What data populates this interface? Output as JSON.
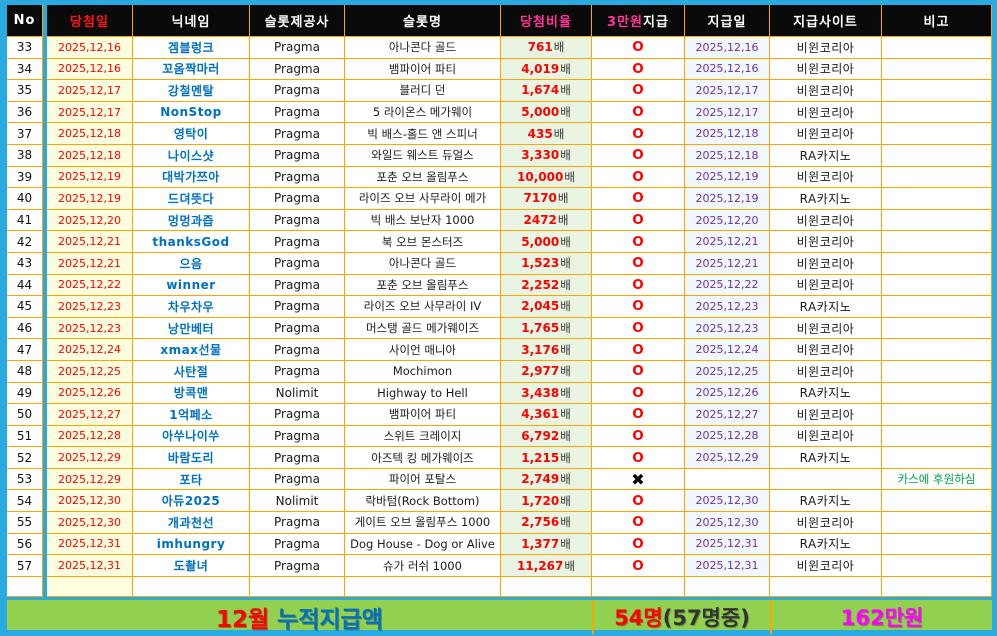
{
  "header": {
    "no": "No",
    "win_date": "당첨일",
    "nickname": "닉네임",
    "provider": "슬롯제공사",
    "slot": "슬롯명",
    "ratio": "당첨비율",
    "paid_accent": "3만원",
    "paid_rest": "지급",
    "pay_date": "지급일",
    "site": "지급사이트",
    "note": "비고"
  },
  "rows": [
    {
      "no": "33",
      "win_date": "2025,12,16",
      "nickname": "겜블렁크",
      "provider": "Pragma",
      "slot": "아나콘다 골드",
      "ratio_value": "761",
      "ratio_unit": "배",
      "paid_mark": "O",
      "pay_date": "2025,12,16",
      "site": "비윈코리아",
      "note": ""
    },
    {
      "no": "34",
      "win_date": "2025,12,16",
      "nickname": "꼬옴짝마러",
      "provider": "Pragma",
      "slot": "뱀파이어 파티",
      "ratio_value": "4,019",
      "ratio_unit": "배",
      "paid_mark": "O",
      "pay_date": "2025,12,16",
      "site": "비윈코리아",
      "note": ""
    },
    {
      "no": "35",
      "win_date": "2025,12,17",
      "nickname": "강철멘탈",
      "provider": "Pragma",
      "slot": "블러디 던",
      "ratio_value": "1,674",
      "ratio_unit": "배",
      "paid_mark": "O",
      "pay_date": "2025,12,17",
      "site": "비윈코리아",
      "note": ""
    },
    {
      "no": "36",
      "win_date": "2025,12,17",
      "nickname": "NonStop",
      "provider": "Pragma",
      "slot": "5 라이온스 메가웨이",
      "ratio_value": "5,000",
      "ratio_unit": "배",
      "paid_mark": "O",
      "pay_date": "2025,12,17",
      "site": "비윈코리아",
      "note": ""
    },
    {
      "no": "37",
      "win_date": "2025,12,18",
      "nickname": "영탁이",
      "provider": "Pragma",
      "slot": "빅 배스-홀드 앤 스피너",
      "ratio_value": "435",
      "ratio_unit": "배",
      "paid_mark": "O",
      "pay_date": "2025,12,18",
      "site": "비윈코리아",
      "note": ""
    },
    {
      "no": "38",
      "win_date": "2025,12,18",
      "nickname": "나이스샷",
      "provider": "Pragma",
      "slot": "와일드 웨스트 듀얼스",
      "ratio_value": "3,330",
      "ratio_unit": "배",
      "paid_mark": "O",
      "pay_date": "2025,12,18",
      "site": "RA카지노",
      "note": ""
    },
    {
      "no": "39",
      "win_date": "2025,12,19",
      "nickname": "대박가쯔아",
      "provider": "Pragma",
      "slot": "포춘 오브 올림푸스",
      "ratio_value": "10,000",
      "ratio_unit": "배",
      "paid_mark": "O",
      "pay_date": "2025,12,19",
      "site": "비윈코리아",
      "note": ""
    },
    {
      "no": "40",
      "win_date": "2025,12,19",
      "nickname": "드뎌뜻다",
      "provider": "Pragma",
      "slot": "라이즈 오브 사무라이 메가",
      "ratio_value": "7170",
      "ratio_unit": "배",
      "paid_mark": "O",
      "pay_date": "2025,12,19",
      "site": "RA카지노",
      "note": ""
    },
    {
      "no": "41",
      "win_date": "2025,12,20",
      "nickname": "멍멍과즙",
      "provider": "Pragma",
      "slot": "빅 배스 보난자 1000",
      "ratio_value": "2472",
      "ratio_unit": "배",
      "paid_mark": "O",
      "pay_date": "2025,12,20",
      "site": "비윈코리아",
      "note": ""
    },
    {
      "no": "42",
      "win_date": "2025,12,21",
      "nickname": "thanksGod",
      "provider": "Pragma",
      "slot": "북 오브 몬스터즈",
      "ratio_value": "5,000",
      "ratio_unit": "배",
      "paid_mark": "O",
      "pay_date": "2025,12,21",
      "site": "비윈코리아",
      "note": ""
    },
    {
      "no": "43",
      "win_date": "2025,12,21",
      "nickname": "으음",
      "provider": "Pragma",
      "slot": "아나콘다 골드",
      "ratio_value": "1,523",
      "ratio_unit": "배",
      "paid_mark": "O",
      "pay_date": "2025,12,21",
      "site": "비윈코리아",
      "note": ""
    },
    {
      "no": "44",
      "win_date": "2025,12,22",
      "nickname": "winner",
      "provider": "Pragma",
      "slot": "포춘 오브 올림푸스",
      "ratio_value": "2,252",
      "ratio_unit": "배",
      "paid_mark": "O",
      "pay_date": "2025,12,22",
      "site": "비윈코리아",
      "note": ""
    },
    {
      "no": "45",
      "win_date": "2025,12,23",
      "nickname": "차우차우",
      "provider": "Pragma",
      "slot": "라이즈 오브 사무라이 IV",
      "ratio_value": "2,045",
      "ratio_unit": "배",
      "paid_mark": "O",
      "pay_date": "2025,12,23",
      "site": "RA카지노",
      "note": ""
    },
    {
      "no": "46",
      "win_date": "2025,12,23",
      "nickname": "낭만베터",
      "provider": "Pragma",
      "slot": "머스탱 골드 메가웨이즈",
      "ratio_value": "1,765",
      "ratio_unit": "배",
      "paid_mark": "O",
      "pay_date": "2025,12,23",
      "site": "비윈코리아",
      "note": ""
    },
    {
      "no": "47",
      "win_date": "2025,12,24",
      "nickname": "xmax선물",
      "provider": "Pragma",
      "slot": "사이언 매니아",
      "ratio_value": "3,176",
      "ratio_unit": "배",
      "paid_mark": "O",
      "pay_date": "2025,12,24",
      "site": "비윈코리아",
      "note": ""
    },
    {
      "no": "48",
      "win_date": "2025,12,25",
      "nickname": "사탄절",
      "provider": "Pragma",
      "slot": "Mochimon",
      "ratio_value": "2,977",
      "ratio_unit": "배",
      "paid_mark": "O",
      "pay_date": "2025,12,25",
      "site": "비윈코리아",
      "note": ""
    },
    {
      "no": "49",
      "win_date": "2025,12,26",
      "nickname": "방콕맨",
      "provider": "Nolimit",
      "slot": "Highway to Hell",
      "ratio_value": "3,438",
      "ratio_unit": "배",
      "paid_mark": "O",
      "pay_date": "2025,12,26",
      "site": "RA카지노",
      "note": ""
    },
    {
      "no": "50",
      "win_date": "2025,12,27",
      "nickname": "1억페소",
      "provider": "Pragma",
      "slot": "뱀파이어 파티",
      "ratio_value": "4,361",
      "ratio_unit": "배",
      "paid_mark": "O",
      "pay_date": "2025,12,27",
      "site": "비윈코리아",
      "note": ""
    },
    {
      "no": "51",
      "win_date": "2025,12,28",
      "nickname": "아쑤나이쑤",
      "provider": "Pragma",
      "slot": "스위트 크레이지",
      "ratio_value": "6,792",
      "ratio_unit": "배",
      "paid_mark": "O",
      "pay_date": "2025,12,28",
      "site": "비윈코리아",
      "note": ""
    },
    {
      "no": "52",
      "win_date": "2025,12,29",
      "nickname": "바람도리",
      "provider": "Pragma",
      "slot": "아즈텍 킹 메가웨이즈",
      "ratio_value": "1,215",
      "ratio_unit": "배",
      "paid_mark": "O",
      "pay_date": "2025,12,29",
      "site": "RA카지노",
      "note": ""
    },
    {
      "no": "53",
      "win_date": "2025,12,29",
      "nickname": "포타",
      "provider": "Pragma",
      "slot": "파이어 포탈스",
      "ratio_value": "2,749",
      "ratio_unit": "배",
      "paid_mark": "✖",
      "pay_date": "",
      "site": "",
      "note": "카스에 후원하심"
    },
    {
      "no": "54",
      "win_date": "2025,12,30",
      "nickname": "아듀2025",
      "provider": "Nolimit",
      "slot": "락바텀(Rock Bottom)",
      "ratio_value": "1,720",
      "ratio_unit": "배",
      "paid_mark": "O",
      "pay_date": "2025,12,30",
      "site": "RA카지노",
      "note": ""
    },
    {
      "no": "55",
      "win_date": "2025,12,30",
      "nickname": "개과천선",
      "provider": "Pragma",
      "slot": "게이트 오브 올림푸스 1000",
      "ratio_value": "2,756",
      "ratio_unit": "배",
      "paid_mark": "O",
      "pay_date": "2025,12,30",
      "site": "비윈코리아",
      "note": ""
    },
    {
      "no": "56",
      "win_date": "2025,12,31",
      "nickname": "imhungry",
      "provider": "Pragma",
      "slot": "Dog House - Dog or Alive",
      "ratio_value": "1,377",
      "ratio_unit": "배",
      "paid_mark": "O",
      "pay_date": "2025,12,31",
      "site": "RA카지노",
      "note": ""
    },
    {
      "no": "57",
      "win_date": "2025,12,31",
      "nickname": "도촬녀",
      "provider": "Pragma",
      "slot": "슈가 러쉬 1000",
      "ratio_value": "11,267",
      "ratio_unit": "배",
      "paid_mark": "O",
      "pay_date": "2025,12,31",
      "site": "비윈코리아",
      "note": ""
    }
  ],
  "footer": {
    "label_month": "12월",
    "label_rest": "누적지급액",
    "count_main": "54명",
    "count_sub": "(57명중)",
    "amount": "162만원"
  },
  "colors": {
    "frame_cyan": "#29AAE1",
    "grid_orange": "#FFA500",
    "header_bg": "#0A0A0A",
    "win_date_bg": "#FFFFDF",
    "ratio_bg": "#E9F4E2",
    "pay_date_bg": "#F0F7FD",
    "footer_green": "#92D050",
    "nickname_blue": "#0070C0",
    "date_red": "#FF0000",
    "pay_date_purple": "#7030A0",
    "accent_pink": "#FF3399",
    "amount_magenta": "#FF00FF",
    "note_green": "#00A14B"
  }
}
